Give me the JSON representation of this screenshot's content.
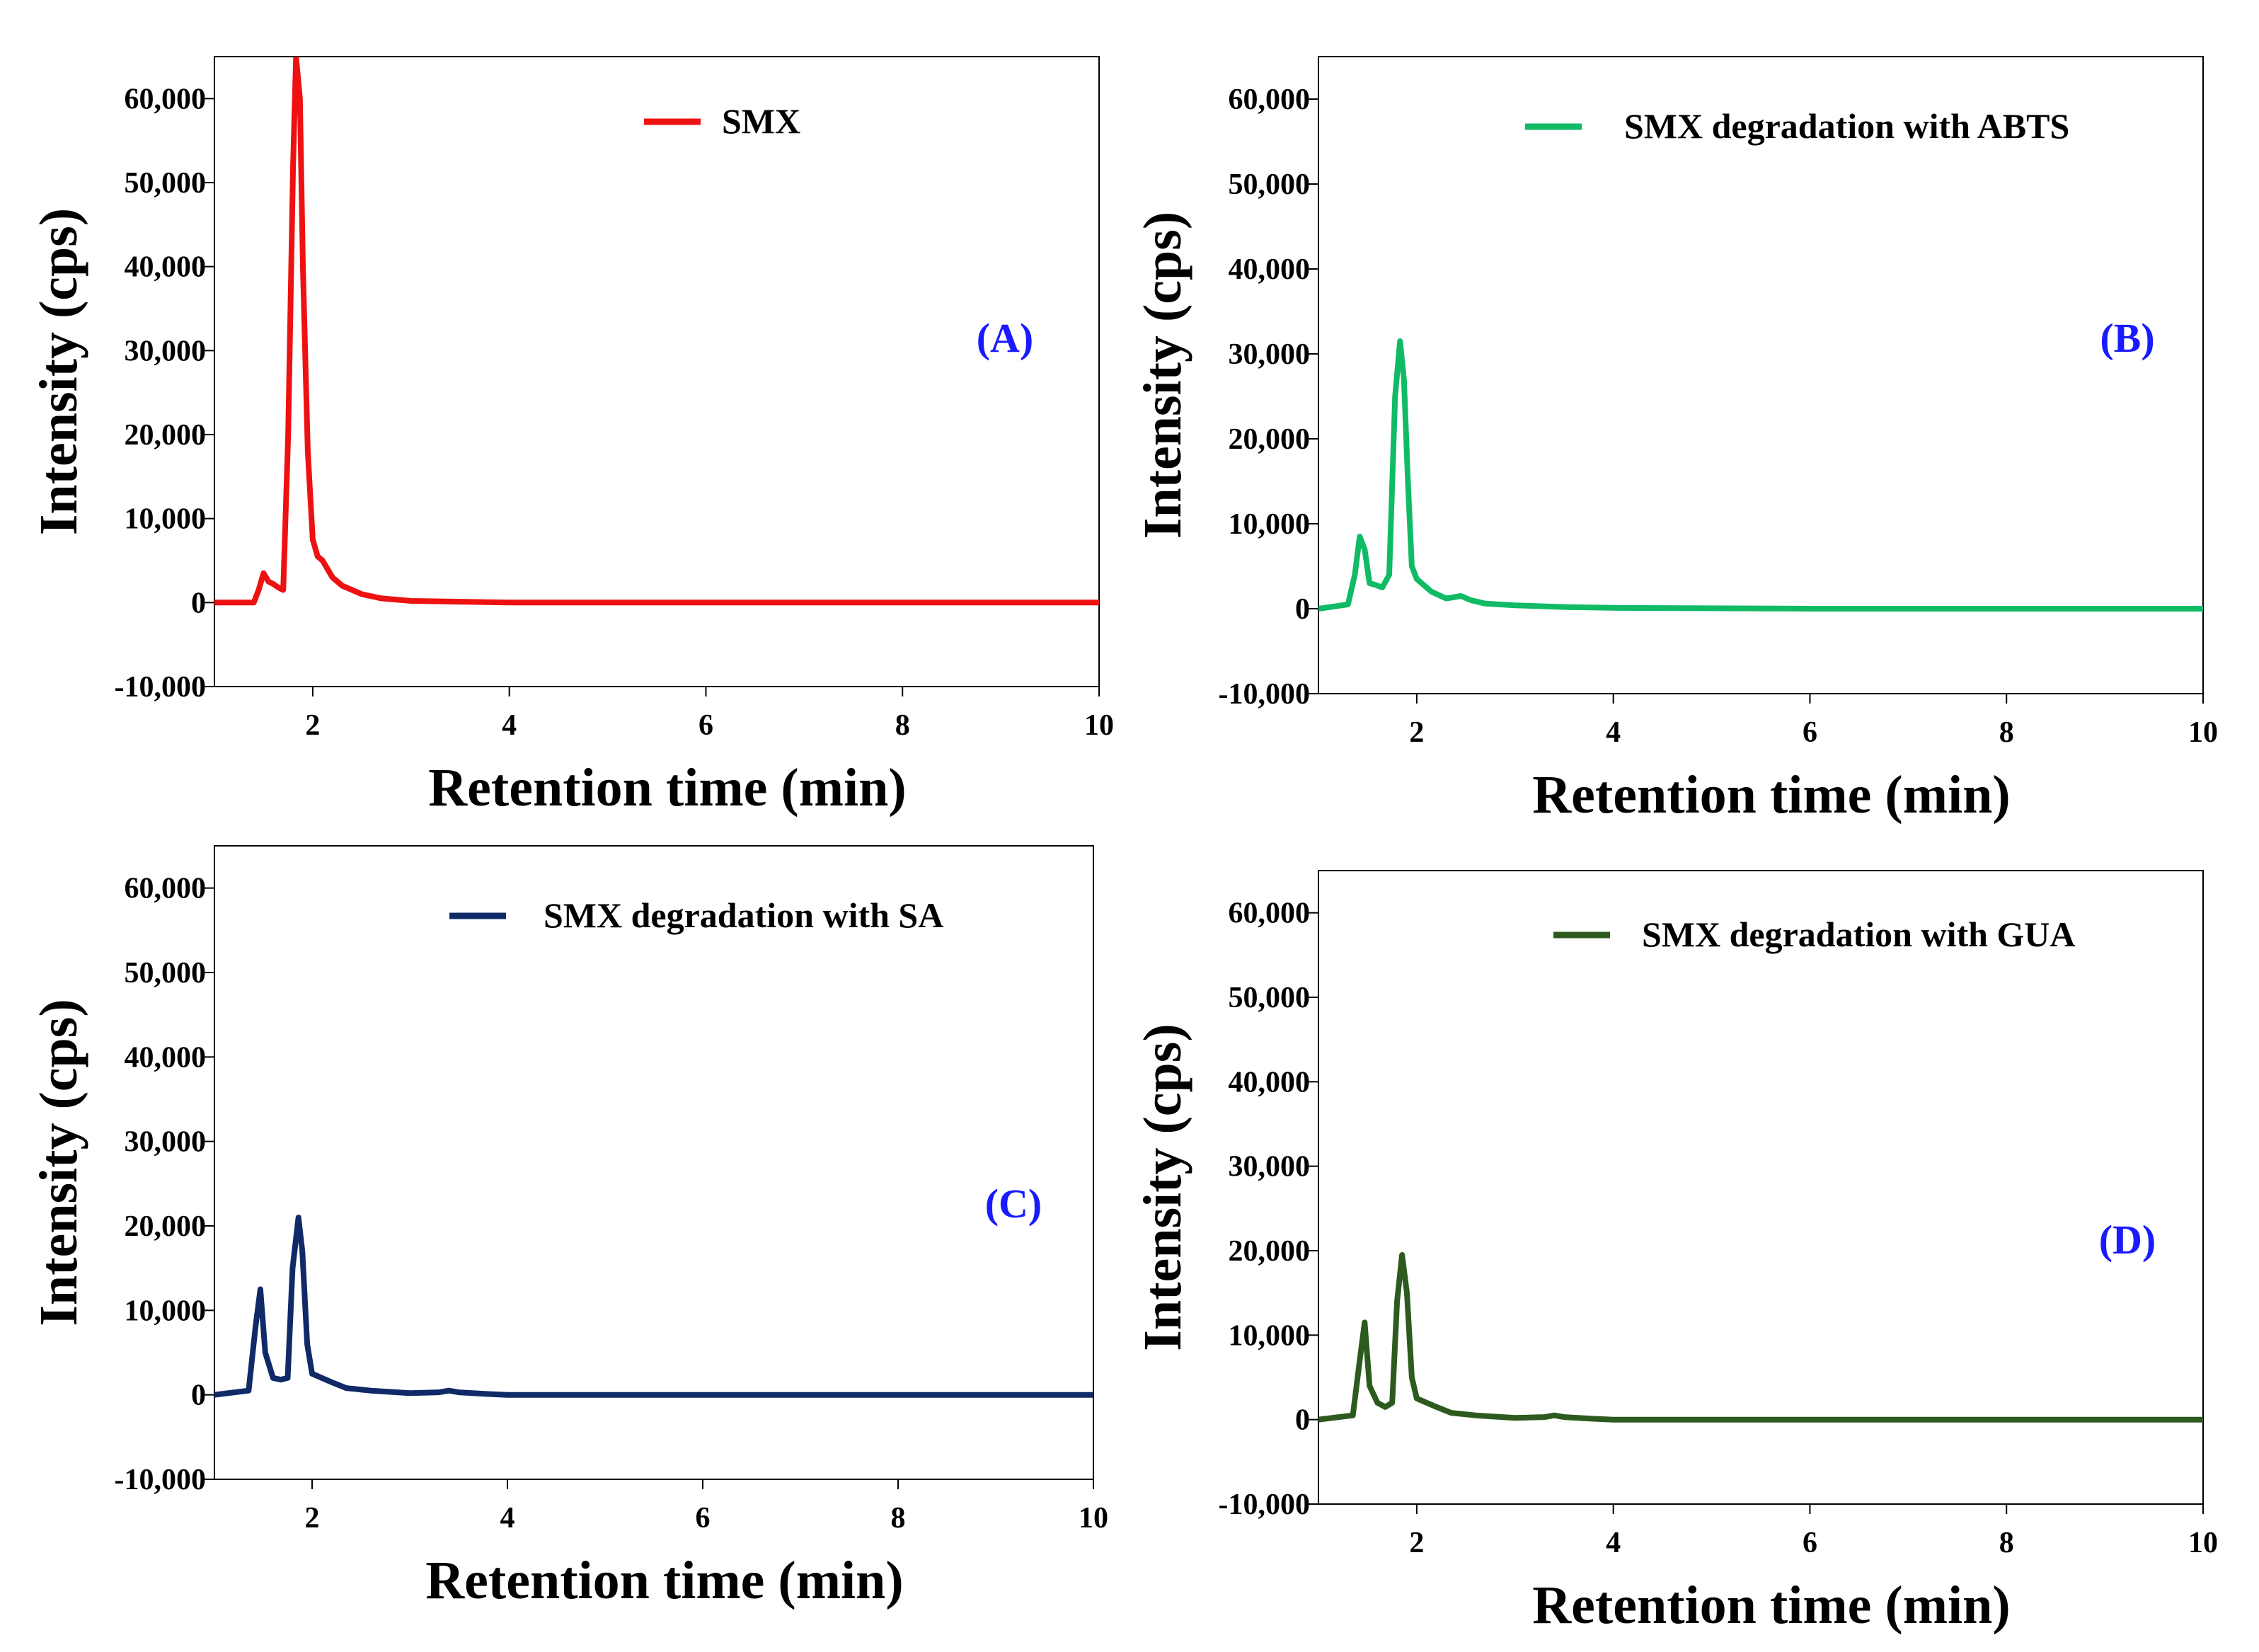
{
  "chart_data": [
    {
      "type": "line",
      "panel_label": "(A)",
      "xlabel": "Retention time (min)",
      "ylabel": "Intensity (cps)",
      "xlim": [
        1,
        10
      ],
      "ylim": [
        -10000,
        65000
      ],
      "xticks": [
        2,
        4,
        6,
        8,
        10
      ],
      "xtick_labels": [
        "2",
        "4",
        "6",
        "8",
        "10"
      ],
      "yticks": [
        -10000,
        0,
        10000,
        20000,
        30000,
        40000,
        50000,
        60000
      ],
      "ytick_labels": [
        "-10,000",
        "0",
        "10,000",
        "20,000",
        "30,000",
        "40,000",
        "50,000",
        "60,000"
      ],
      "grid": false,
      "legend_position": "top-right",
      "series": [
        {
          "name": "SMX",
          "color": "#ee1111",
          "x": [
            1.0,
            1.4,
            1.45,
            1.5,
            1.55,
            1.6,
            1.65,
            1.7,
            1.75,
            1.8,
            1.83,
            1.87,
            1.9,
            1.95,
            2.0,
            2.05,
            2.1,
            2.2,
            2.3,
            2.5,
            2.7,
            3.0,
            4.0,
            6.0,
            8.0,
            10.0
          ],
          "values": [
            0,
            0,
            1500,
            3500,
            2500,
            2200,
            1800,
            1500,
            20000,
            52000,
            65000,
            60000,
            40000,
            18000,
            7500,
            5500,
            5000,
            3000,
            2000,
            1000,
            500,
            200,
            0,
            0,
            0,
            0
          ]
        }
      ]
    },
    {
      "type": "line",
      "panel_label": "(B)",
      "xlabel": "Retention time (min)",
      "ylabel": "Intensity (cps)",
      "xlim": [
        1,
        10
      ],
      "ylim": [
        -10000,
        65000
      ],
      "xticks": [
        2,
        4,
        6,
        8,
        10
      ],
      "xtick_labels": [
        "2",
        "4",
        "6",
        "8",
        "10"
      ],
      "yticks": [
        -10000,
        0,
        10000,
        20000,
        30000,
        40000,
        50000,
        60000
      ],
      "ytick_labels": [
        "-10,000",
        "0",
        "10,000",
        "20,000",
        "30,000",
        "40,000",
        "50,000",
        "60,000"
      ],
      "grid": false,
      "legend_position": "top-right",
      "series": [
        {
          "name": "SMX degradation with ABTS",
          "color": "#11bb66",
          "x": [
            1.0,
            1.3,
            1.37,
            1.42,
            1.47,
            1.52,
            1.58,
            1.65,
            1.72,
            1.78,
            1.83,
            1.87,
            1.91,
            1.95,
            2.0,
            2.05,
            2.15,
            2.3,
            2.45,
            2.55,
            2.7,
            3.0,
            3.5,
            4.0,
            6.0,
            8.0,
            10.0
          ],
          "values": [
            0,
            500,
            4000,
            8500,
            7000,
            3000,
            2800,
            2500,
            4000,
            25000,
            31500,
            27000,
            15000,
            5000,
            3500,
            3000,
            2000,
            1200,
            1500,
            1000,
            600,
            400,
            200,
            100,
            0,
            0,
            0
          ]
        }
      ]
    },
    {
      "type": "line",
      "panel_label": "(C)",
      "xlabel": "Retention time (min)",
      "ylabel": "Intensity (cps)",
      "xlim": [
        1,
        10
      ],
      "ylim": [
        -10000,
        65000
      ],
      "xticks": [
        2,
        4,
        6,
        8,
        10
      ],
      "xtick_labels": [
        "2",
        "4",
        "6",
        "8",
        "10"
      ],
      "yticks": [
        -10000,
        0,
        10000,
        20000,
        30000,
        40000,
        50000,
        60000
      ],
      "ytick_labels": [
        "-10,000",
        "0",
        "10,000",
        "20,000",
        "30,000",
        "40,000",
        "50,000",
        "60,000"
      ],
      "grid": false,
      "legend_position": "top-right",
      "series": [
        {
          "name": "SMX degradation with SA",
          "color": "#0f2a66",
          "x": [
            1.0,
            1.35,
            1.42,
            1.47,
            1.52,
            1.6,
            1.68,
            1.75,
            1.8,
            1.86,
            1.9,
            1.95,
            2.0,
            2.1,
            2.2,
            2.35,
            2.6,
            3.0,
            3.3,
            3.4,
            3.5,
            3.8,
            4.0,
            6.0,
            8.0,
            10.0
          ],
          "values": [
            0,
            500,
            8000,
            12500,
            5000,
            2000,
            1800,
            2000,
            15000,
            21000,
            17000,
            6000,
            2500,
            2000,
            1500,
            800,
            500,
            200,
            300,
            500,
            300,
            100,
            0,
            0,
            0,
            0
          ]
        }
      ]
    },
    {
      "type": "line",
      "panel_label": "(D)",
      "xlabel": "Retention time (min)",
      "ylabel": "Intensity (cps)",
      "xlim": [
        1,
        10
      ],
      "ylim": [
        -10000,
        65000
      ],
      "xticks": [
        2,
        4,
        6,
        8,
        10
      ],
      "xtick_labels": [
        "2",
        "4",
        "6",
        "8",
        "10"
      ],
      "yticks": [
        -10000,
        0,
        10000,
        20000,
        30000,
        40000,
        50000,
        60000
      ],
      "ytick_labels": [
        "-10,000",
        "0",
        "10,000",
        "20,000",
        "30,000",
        "40,000",
        "50,000",
        "60,000"
      ],
      "grid": false,
      "legend_position": "top-right",
      "series": [
        {
          "name": "SMX degradation with GUA",
          "color": "#2d5a1e",
          "x": [
            1.0,
            1.35,
            1.42,
            1.47,
            1.52,
            1.6,
            1.68,
            1.75,
            1.8,
            1.85,
            1.9,
            1.95,
            2.0,
            2.1,
            2.2,
            2.35,
            2.6,
            3.0,
            3.3,
            3.4,
            3.5,
            3.8,
            4.0,
            6.0,
            8.0,
            10.0
          ],
          "values": [
            0,
            500,
            7000,
            11500,
            4000,
            2000,
            1500,
            2000,
            14000,
            19500,
            15000,
            5000,
            2500,
            2000,
            1500,
            800,
            500,
            200,
            300,
            500,
            300,
            100,
            0,
            0,
            0,
            0
          ]
        }
      ]
    }
  ]
}
